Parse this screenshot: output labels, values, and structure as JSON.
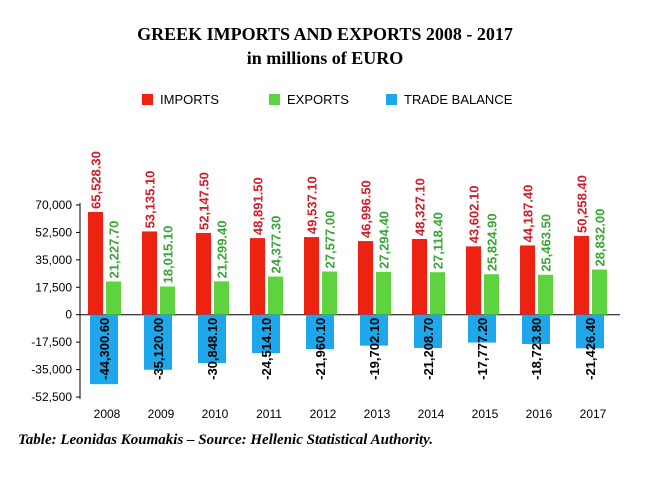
{
  "title_line1": "GREEK IMPORTS AND EXPORTS 2008 - 2017",
  "title_line2": "in millions of EURO",
  "caption": "Table: Leonidas Koumakis – Source: Hellenic Statistical Authority.",
  "chart_data": {
    "type": "bar",
    "categories": [
      "2008",
      "2009",
      "2010",
      "2011",
      "2012",
      "2013",
      "2014",
      "2015",
      "2016",
      "2017"
    ],
    "series": [
      {
        "name": "IMPORTS",
        "color": "#ee2211",
        "values": [
          65528.3,
          53135.1,
          52147.5,
          48891.5,
          49537.1,
          46996.5,
          48327.1,
          43602.1,
          44187.4,
          50258.4
        ],
        "labels": [
          "65,528.30",
          "53,135.10",
          "52,147.50",
          "48,891.50",
          "49,537.10",
          "46,996.50",
          "48,327.10",
          "43,602.10",
          "44,187.40",
          "50,258.40"
        ],
        "label_color": "#cc1f2b"
      },
      {
        "name": "EXPORTS",
        "color": "#5fd33f",
        "values": [
          21227.7,
          18015.1,
          21299.4,
          24377.3,
          27577.0,
          27294.4,
          27118.4,
          25824.9,
          25463.5,
          28832.0
        ],
        "labels": [
          "21,227.70",
          "18,015.10",
          "21,299.40",
          "24,377.30",
          "27,577.00",
          "27,294.40",
          "27,118.40",
          "25,824.90",
          "25,463.50",
          "28,832.00"
        ],
        "label_color": "#3aa536"
      },
      {
        "name": "TRADE BALANCE",
        "color": "#1ea7ea",
        "values": [
          -44300.6,
          -35120.0,
          -30848.1,
          -24514.1,
          -21960.1,
          -19702.1,
          -21208.7,
          -17777.2,
          -18723.8,
          -21426.4
        ],
        "labels": [
          "-44,300.60",
          "-35,120.00",
          "-30,848.10",
          "-24,514.10",
          "-21,960.10",
          "-19,702.10",
          "-21,208.70",
          "-17,777.20",
          "-18,723.80",
          "-21,426.40"
        ],
        "label_color": "#000000"
      }
    ],
    "y_ticks": [
      70000,
      52500,
      35000,
      17500,
      0,
      -17500,
      -35000,
      -52500
    ],
    "y_tick_labels": [
      "70,000",
      "52,500",
      "35,000",
      "17,500",
      "0",
      "-17,500",
      "-35,000",
      "-52,500"
    ],
    "ylim": [
      -52500,
      70000
    ],
    "grid": false,
    "legend_position": "top"
  }
}
